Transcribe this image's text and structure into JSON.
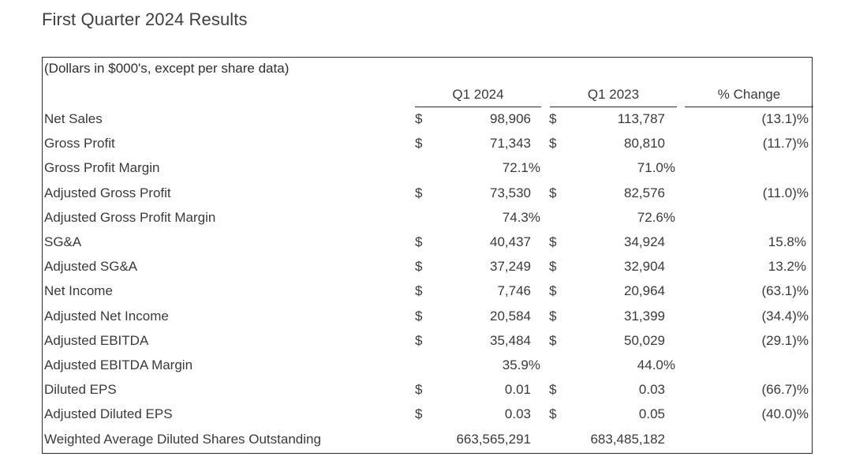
{
  "title": "First Quarter 2024 Results",
  "table": {
    "caption": "(Dollars in $000's, except per share data)",
    "headers": [
      "Q1 2024",
      "Q1 2023",
      "% Change"
    ],
    "rows": [
      {
        "label": "Net Sales",
        "d1": "$",
        "v1": "98,906",
        "d2": "$",
        "v2": "113,787",
        "change": "(13.1)%"
      },
      {
        "label": "Gross Profit",
        "d1": "$",
        "v1": "71,343",
        "d2": "$",
        "v2": "80,810",
        "change": "(11.7)%"
      },
      {
        "label": "Gross Profit Margin",
        "m1": "72.1%",
        "m2": "71.0%"
      },
      {
        "label": "Adjusted Gross Profit",
        "d1": "$",
        "v1": "73,530",
        "d2": "$",
        "v2": "82,576",
        "change": "(11.0)%"
      },
      {
        "label": "Adjusted Gross Profit Margin",
        "m1": "74.3%",
        "m2": "72.6%"
      },
      {
        "label": "SG&A",
        "d1": "$",
        "v1": "40,437",
        "d2": "$",
        "v2": "34,924",
        "change": "15.8%"
      },
      {
        "label": "Adjusted SG&A",
        "d1": "$",
        "v1": "37,249",
        "d2": "$",
        "v2": "32,904",
        "change": "13.2%"
      },
      {
        "label": "Net Income",
        "d1": "$",
        "v1": "7,746",
        "d2": "$",
        "v2": "20,964",
        "change": "(63.1)%"
      },
      {
        "label": "Adjusted Net Income",
        "d1": "$",
        "v1": "20,584",
        "d2": "$",
        "v2": "31,399",
        "change": "(34.4)%"
      },
      {
        "label": "Adjusted EBITDA",
        "d1": "$",
        "v1": "35,484",
        "d2": "$",
        "v2": "50,029",
        "change": "(29.1)%"
      },
      {
        "label": "Adjusted EBITDA Margin",
        "m1": "35.9%",
        "m2": "44.0%"
      },
      {
        "label": "Diluted EPS",
        "d1": "$",
        "v1": "0.01",
        "d2": "$",
        "v2": "0.03",
        "change": "(66.7)%"
      },
      {
        "label": "Adjusted Diluted EPS",
        "d1": "$",
        "v1": "0.03",
        "d2": "$",
        "v2": "0.05",
        "change": "(40.0)%"
      },
      {
        "label": "Weighted Average Diluted Shares Outstanding",
        "v1": "663,565,291",
        "v2": "683,485,182"
      }
    ]
  }
}
